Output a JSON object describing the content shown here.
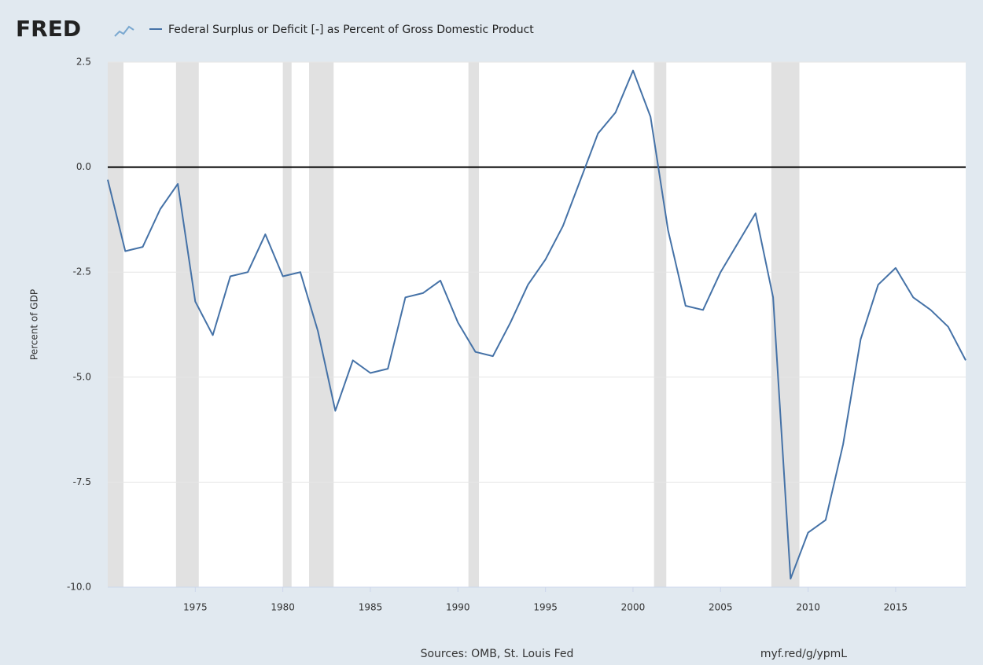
{
  "chart_data": {
    "type": "line",
    "logo": "FRED",
    "title": "Federal Surplus or Deficit [-] as Percent of Gross Domestic Product",
    "y_label": "Percent of GDP",
    "source": "Sources: OMB, St. Louis Fed",
    "link": "myf.red/g/ypmL",
    "x": [
      1970,
      1971,
      1972,
      1973,
      1974,
      1975,
      1976,
      1977,
      1978,
      1979,
      1980,
      1981,
      1982,
      1983,
      1984,
      1985,
      1986,
      1987,
      1988,
      1989,
      1990,
      1991,
      1992,
      1993,
      1994,
      1995,
      1996,
      1997,
      1998,
      1999,
      2000,
      2001,
      2002,
      2003,
      2004,
      2005,
      2006,
      2007,
      2008,
      2009,
      2010,
      2011,
      2012,
      2013,
      2014,
      2015,
      2016,
      2017,
      2018,
      2019
    ],
    "series": [
      {
        "name": "Federal Surplus or Deficit [-] as Percent of Gross Domestic Product",
        "color": "#4572a7",
        "values": [
          -0.3,
          -2.0,
          -1.9,
          -1.0,
          -0.4,
          -3.2,
          -4.0,
          -2.6,
          -2.5,
          -1.6,
          -2.6,
          -2.5,
          -3.9,
          -5.8,
          -4.6,
          -4.9,
          -4.8,
          -3.1,
          -3.0,
          -2.7,
          -3.7,
          -4.4,
          -4.5,
          -3.7,
          -2.8,
          -2.2,
          -1.4,
          -0.3,
          0.8,
          1.3,
          2.3,
          1.2,
          -1.5,
          -3.3,
          -3.4,
          -2.5,
          -1.8,
          -1.1,
          -3.1,
          -9.8,
          -8.7,
          -8.4,
          -6.6,
          -4.1,
          -2.8,
          -2.4,
          -3.1,
          -3.4,
          -3.8,
          -4.6
        ]
      }
    ],
    "recessions": [
      [
        1970.0,
        1970.9
      ],
      [
        1973.9,
        1975.2
      ],
      [
        1980.0,
        1980.5
      ],
      [
        1981.5,
        1982.9
      ],
      [
        1990.6,
        1991.2
      ],
      [
        2001.2,
        2001.9
      ],
      [
        2007.9,
        2009.5
      ]
    ],
    "recession_color": "#e1e1e1",
    "xlim": [
      1970,
      2019
    ],
    "xticks": [
      1975,
      1980,
      1985,
      1990,
      1995,
      2000,
      2005,
      2010,
      2015
    ],
    "ylim": [
      -10,
      2.5
    ],
    "yticks": [
      2.5,
      {
        "value": 0,
        "label": "0.0"
      },
      {
        "value": -2.5,
        "label": "-2.5"
      },
      {
        "value": -5,
        "label": "-5.0"
      },
      {
        "value": -7.5,
        "label": "-7.5"
      },
      {
        "value": -10,
        "label": "-10.0"
      }
    ],
    "grid": true,
    "zero_line": true
  }
}
